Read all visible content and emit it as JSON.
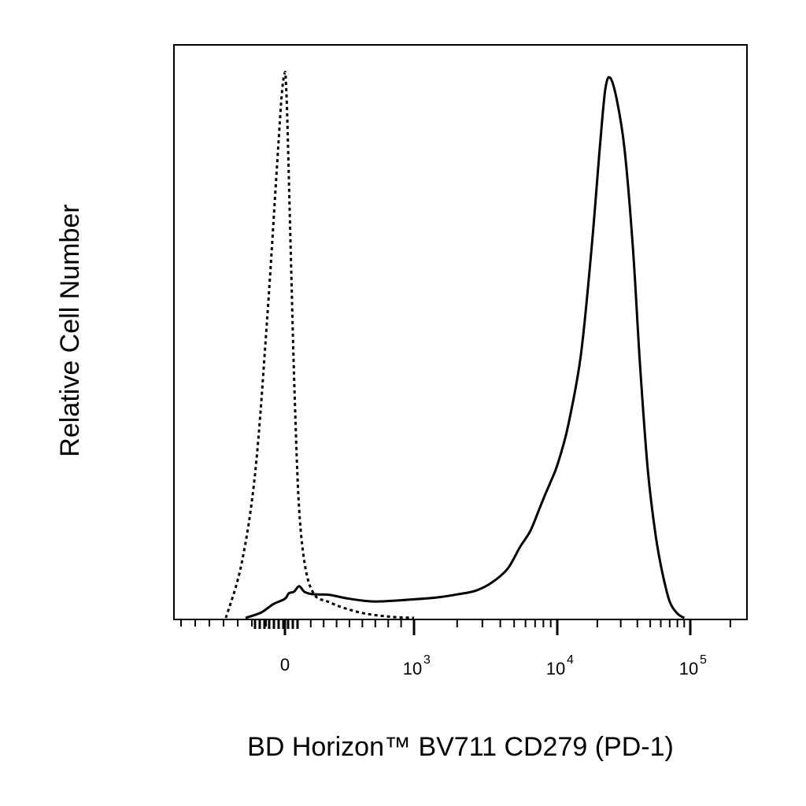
{
  "chart_data": {
    "type": "line",
    "title": "",
    "xlabel": "BD Horizon™ BV711 CD279 (PD-1)",
    "ylabel": "Relative Cell Number",
    "x_scale": "biexponential",
    "xlim": [
      -200,
      150000
    ],
    "ylim": [
      0,
      1.0
    ],
    "grid": false,
    "legend": "none",
    "x_ticks": [
      {
        "value": 0,
        "base": "0",
        "exp": ""
      },
      {
        "value": 1000,
        "base": "10",
        "exp": "3"
      },
      {
        "value": 10000,
        "base": "10",
        "exp": "4"
      },
      {
        "value": 100000,
        "base": "10",
        "exp": "5"
      }
    ],
    "series": [
      {
        "style": "dotted",
        "x": [
          -150,
          -110,
          -75,
          -45,
          -20,
          -8,
          0,
          8,
          20,
          45,
          75,
          110,
          160,
          230,
          330,
          460,
          620,
          820,
          1000
        ],
        "y": [
          0.0,
          0.1,
          0.27,
          0.55,
          0.83,
          0.96,
          1.0,
          0.98,
          0.9,
          0.67,
          0.41,
          0.2,
          0.09,
          0.042,
          0.03,
          0.018,
          0.008,
          0.002,
          0.0
        ]
      },
      {
        "style": "solid",
        "x": [
          -100,
          -60,
          -30,
          0,
          30,
          70,
          110,
          150,
          200,
          260,
          350,
          500,
          700,
          1000,
          1500,
          2000,
          2700,
          3500,
          4500,
          5500,
          6500,
          7500,
          8200,
          9000,
          10000,
          12000,
          15000,
          18000,
          21000,
          23000,
          25000,
          28000,
          32000,
          37000,
          42000,
          48000,
          55000,
          62000,
          70000,
          80000,
          90000
        ],
        "y": [
          0.0,
          0.01,
          0.025,
          0.035,
          0.045,
          0.048,
          0.058,
          0.048,
          0.044,
          0.043,
          0.042,
          0.035,
          0.03,
          0.034,
          0.038,
          0.043,
          0.05,
          0.065,
          0.09,
          0.13,
          0.16,
          0.2,
          0.225,
          0.25,
          0.28,
          0.35,
          0.48,
          0.67,
          0.87,
          0.97,
          0.99,
          0.95,
          0.86,
          0.68,
          0.46,
          0.27,
          0.15,
          0.08,
          0.03,
          0.008,
          0.0
        ]
      }
    ]
  }
}
